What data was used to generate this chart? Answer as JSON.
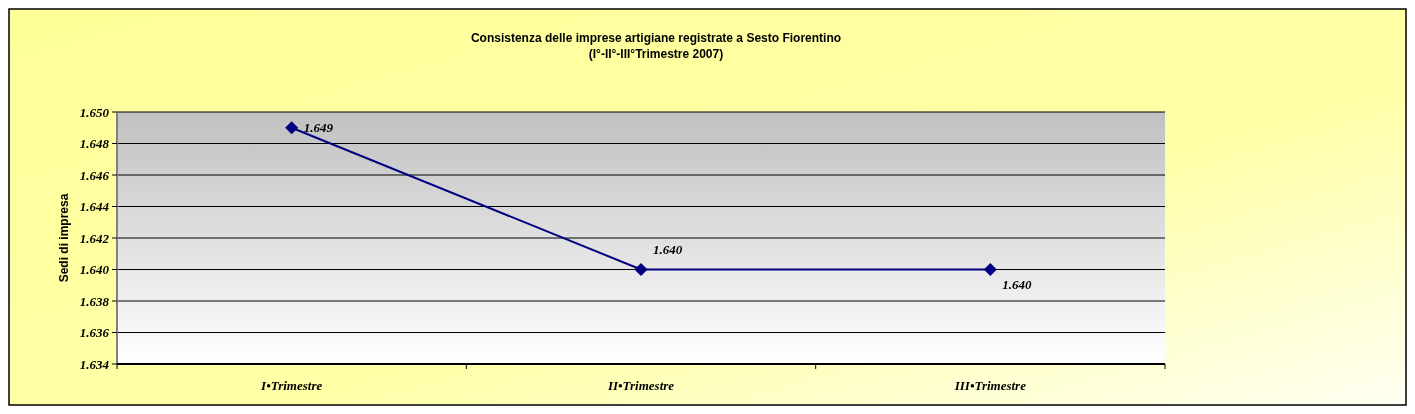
{
  "chart_data": {
    "type": "line",
    "title": "Consistenza delle imprese artigiane registrate a Sesto Fiorentino",
    "subtitle": "(I°-II°-III°Trimestre 2007)",
    "ylabel": "Sedi di impresa",
    "categories": [
      "I•Trimestre",
      "II•Trimestre",
      "III•Trimestre"
    ],
    "series": [
      {
        "color": "#000080",
        "values": [
          1649,
          1640,
          1640
        ],
        "value_labels": [
          "1.649",
          "1.640",
          "1.640"
        ]
      }
    ],
    "ylim": [
      1634,
      1650
    ],
    "yticks": [
      {
        "value": 1634,
        "label": "1.634"
      },
      {
        "value": 1636,
        "label": "1.636"
      },
      {
        "value": 1638,
        "label": "1.638"
      },
      {
        "value": 1640,
        "label": "1.640"
      },
      {
        "value": 1642,
        "label": "1.642"
      },
      {
        "value": 1644,
        "label": "1.644"
      },
      {
        "value": 1646,
        "label": "1.646"
      },
      {
        "value": 1648,
        "label": "1.648"
      },
      {
        "value": 1650,
        "label": "1.650"
      }
    ],
    "grid": "y",
    "marker": "diamond",
    "line_style": "solid"
  }
}
